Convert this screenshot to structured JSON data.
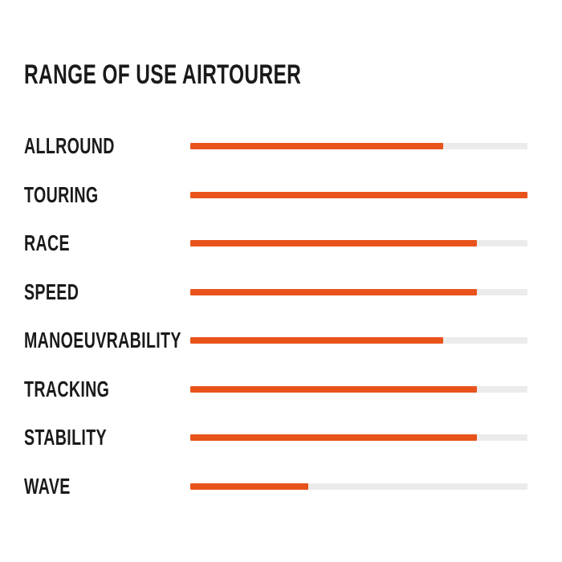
{
  "chart_data": {
    "type": "bar",
    "orientation": "horizontal",
    "title": "RANGE OF USE AIRTOURER",
    "categories": [
      "ALLROUND",
      "TOURING",
      "RACE",
      "SPEED",
      "MANOEUVRABILITY",
      "TRACKING",
      "STABILITY",
      "WAVE"
    ],
    "values": [
      75,
      100,
      85,
      85,
      75,
      85,
      85,
      35
    ],
    "value_unit": "percent of full track",
    "xlim": [
      0,
      100
    ],
    "grid": false,
    "legend": false,
    "colors": {
      "bar_fill": "#E8531B",
      "bar_track": "#EBEBEB",
      "text": "#1A1A1A",
      "background": "#FFFFFF"
    }
  }
}
